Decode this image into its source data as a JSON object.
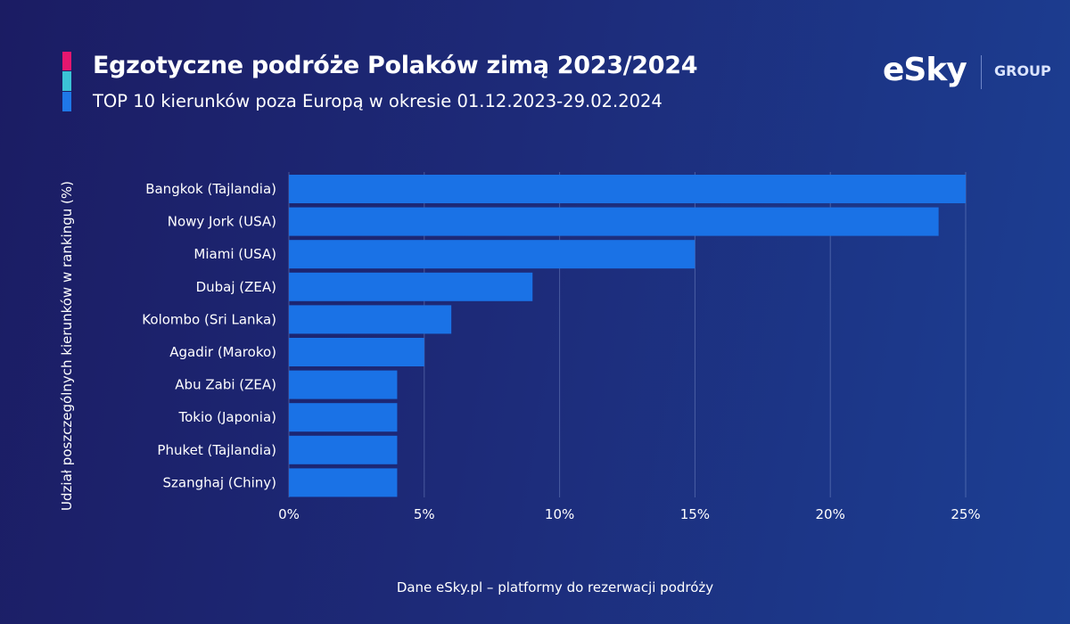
{
  "header": {
    "title": "Egzotyczne podróże Polaków zimą 2023/2024",
    "subtitle": "TOP 10 kierunków poza Europą w okresie 01.12.2023-29.02.2024",
    "accent_colors": [
      "#e5176f",
      "#3bc3d6",
      "#1f78e8"
    ]
  },
  "logo": {
    "brand": "eSky",
    "group": "GROUP"
  },
  "source": "Dane eSky.pl – platformy do rezerwacji podróży",
  "chart_data": {
    "type": "bar",
    "orientation": "horizontal",
    "categories": [
      "Bangkok (Tajlandia)",
      "Nowy Jork (USA)",
      "Miami (USA)",
      "Dubaj (ZEA)",
      "Kolombo (Sri Lanka)",
      "Agadir (Maroko)",
      "Abu Zabi (ZEA)",
      "Tokio (Japonia)",
      "Phuket (Tajlandia)",
      "Szanghaj (Chiny)"
    ],
    "values": [
      25,
      24,
      15,
      9,
      6,
      5,
      4,
      4,
      4,
      4
    ],
    "ylabel": "Udział poszczególnych kierunków w rankingu (%)",
    "xlabel": "",
    "xlim": [
      0,
      25
    ],
    "xticks": [
      "0%",
      "5%",
      "10%",
      "15%",
      "20%",
      "25%"
    ],
    "grid": true,
    "bar_color": "#1a72e6"
  }
}
